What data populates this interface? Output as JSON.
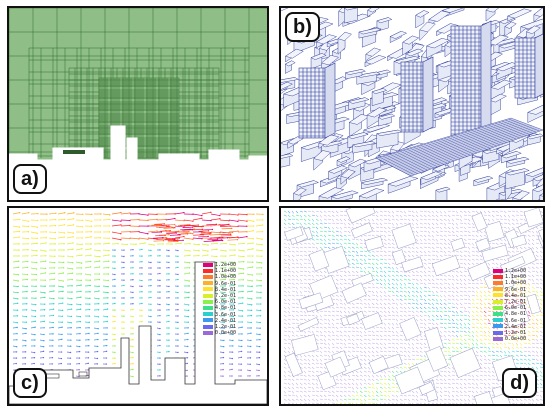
{
  "panels": [
    {
      "id": "a",
      "label": "a)",
      "description": "adaptive hexahedral mesh over city block cross-section"
    },
    {
      "id": "b",
      "label": "b)",
      "description": "3D wireframe mesh of urban buildings"
    },
    {
      "id": "c",
      "label": "c)",
      "description": "vertical cross-section wind velocity vectors"
    },
    {
      "id": "d",
      "label": "d)",
      "description": "horizontal plan wind velocity vectors around buildings"
    }
  ],
  "legend": {
    "values": [
      "1.2e+00",
      "1.1e+00",
      "1.0e+00",
      "9.6e-01",
      "8.4e-01",
      "7.2e-01",
      "6.0e-01",
      "4.8e-01",
      "3.6e-01",
      "2.4e-01",
      "1.2e-01",
      "0.0e+00"
    ],
    "colors": [
      "#e0007a",
      "#ff2a2a",
      "#ff7a2a",
      "#ffb02a",
      "#ffe02a",
      "#d8f02a",
      "#8af04a",
      "#3ae08a",
      "#2ad0d0",
      "#3a9af0",
      "#6a6af0",
      "#9a6ad8"
    ]
  },
  "colors": {
    "mesh_fill": "#8fbf86",
    "mesh_line": "#2f6b2c",
    "wire_line": "#2b3c9a",
    "ground": "#ffffff"
  }
}
